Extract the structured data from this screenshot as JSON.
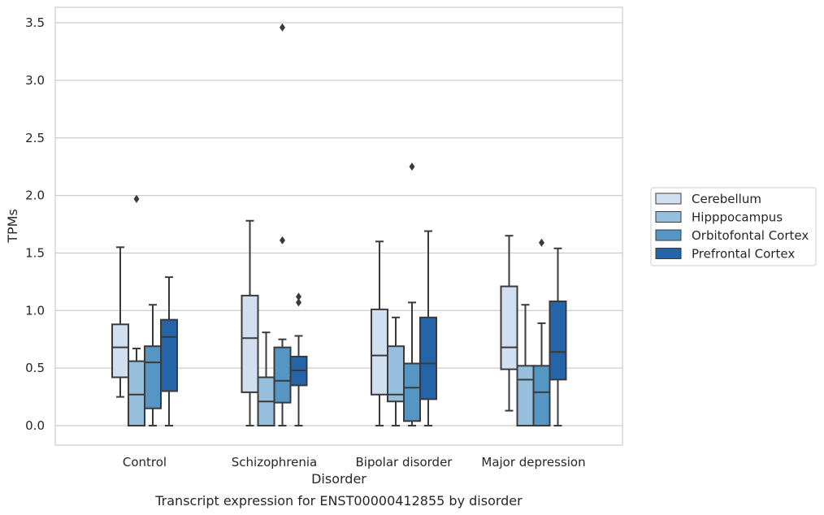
{
  "caption": "Transcript expression for ENST00000412855 by disorder",
  "chart_data": {
    "type": "box",
    "xlabel": "Disorder",
    "ylabel": "TPMs",
    "ylim": [
      -0.17,
      3.64
    ],
    "yticks": [
      "0.0",
      "0.5",
      "1.0",
      "1.5",
      "2.0",
      "2.5",
      "3.0",
      "3.5"
    ],
    "grid": true,
    "legend_position": "right",
    "categories": [
      "Control",
      "Schizophrenia",
      "Bipolar disorder",
      "Major depression"
    ],
    "series": [
      {
        "name": "Cerebellum",
        "color": "#d1e0f0",
        "boxes": [
          {
            "whisker_low": 0.25,
            "q1": 0.42,
            "median": 0.68,
            "q3": 0.88,
            "whisker_high": 1.55,
            "outliers": []
          },
          {
            "whisker_low": 0.0,
            "q1": 0.29,
            "median": 0.76,
            "q3": 1.13,
            "whisker_high": 1.78,
            "outliers": []
          },
          {
            "whisker_low": 0.0,
            "q1": 0.27,
            "median": 0.61,
            "q3": 1.01,
            "whisker_high": 1.6,
            "outliers": []
          },
          {
            "whisker_low": 0.13,
            "q1": 0.49,
            "median": 0.68,
            "q3": 1.21,
            "whisker_high": 1.65,
            "outliers": []
          }
        ]
      },
      {
        "name": "Hipppocampus",
        "color": "#95bfdc",
        "boxes": [
          {
            "whisker_low": 0.0,
            "q1": 0.0,
            "median": 0.27,
            "q3": 0.56,
            "whisker_high": 0.67,
            "outliers": [
              1.97
            ]
          },
          {
            "whisker_low": 0.0,
            "q1": 0.0,
            "median": 0.21,
            "q3": 0.42,
            "whisker_high": 0.81,
            "outliers": []
          },
          {
            "whisker_low": 0.0,
            "q1": 0.21,
            "median": 0.27,
            "q3": 0.69,
            "whisker_high": 0.94,
            "outliers": []
          },
          {
            "whisker_low": 0.0,
            "q1": 0.0,
            "median": 0.4,
            "q3": 0.52,
            "whisker_high": 1.05,
            "outliers": []
          }
        ]
      },
      {
        "name": "Orbitofontal Cortex",
        "color": "#5696c5",
        "boxes": [
          {
            "whisker_low": 0.0,
            "q1": 0.15,
            "median": 0.55,
            "q3": 0.69,
            "whisker_high": 1.05,
            "outliers": []
          },
          {
            "whisker_low": 0.0,
            "q1": 0.2,
            "median": 0.39,
            "q3": 0.68,
            "whisker_high": 0.75,
            "outliers": [
              1.61,
              3.46
            ]
          },
          {
            "whisker_low": 0.0,
            "q1": 0.04,
            "median": 0.33,
            "q3": 0.54,
            "whisker_high": 1.07,
            "outliers": [
              2.25
            ]
          },
          {
            "whisker_low": 0.0,
            "q1": 0.0,
            "median": 0.29,
            "q3": 0.52,
            "whisker_high": 0.89,
            "outliers": [
              1.59
            ]
          }
        ]
      },
      {
        "name": "Prefrontal Cortex",
        "color": "#2565a7",
        "boxes": [
          {
            "whisker_low": 0.0,
            "q1": 0.3,
            "median": 0.77,
            "q3": 0.92,
            "whisker_high": 1.29,
            "outliers": []
          },
          {
            "whisker_low": 0.0,
            "q1": 0.35,
            "median": 0.48,
            "q3": 0.6,
            "whisker_high": 0.78,
            "outliers": [
              1.07,
              1.12
            ]
          },
          {
            "whisker_low": 0.0,
            "q1": 0.23,
            "median": 0.54,
            "q3": 0.94,
            "whisker_high": 1.69,
            "outliers": []
          },
          {
            "whisker_low": 0.0,
            "q1": 0.4,
            "median": 0.64,
            "q3": 1.08,
            "whisker_high": 1.54,
            "outliers": []
          }
        ]
      }
    ]
  }
}
